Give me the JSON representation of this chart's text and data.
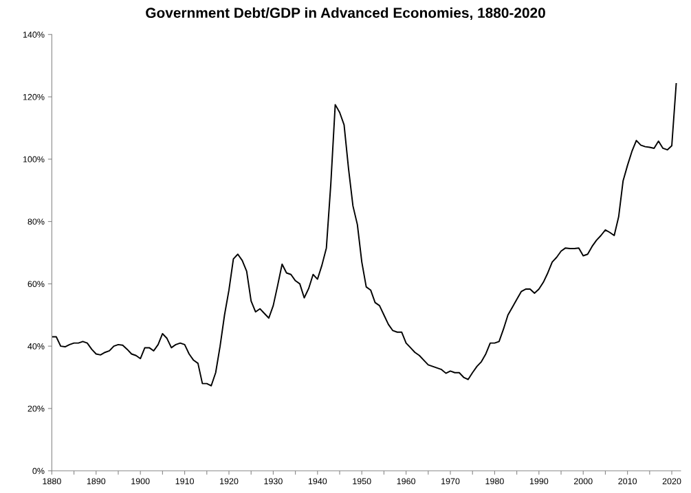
{
  "chart_data": {
    "type": "line",
    "title": "Government Debt/GDP in Advanced Economies, 1880-2020",
    "x": [
      1880,
      1881,
      1882,
      1883,
      1884,
      1885,
      1886,
      1887,
      1888,
      1889,
      1890,
      1891,
      1892,
      1893,
      1894,
      1895,
      1896,
      1897,
      1898,
      1899,
      1900,
      1901,
      1902,
      1903,
      1904,
      1905,
      1906,
      1907,
      1908,
      1909,
      1910,
      1911,
      1912,
      1913,
      1914,
      1915,
      1916,
      1917,
      1918,
      1919,
      1920,
      1921,
      1922,
      1923,
      1924,
      1925,
      1926,
      1927,
      1928,
      1929,
      1930,
      1931,
      1932,
      1933,
      1934,
      1935,
      1936,
      1937,
      1938,
      1939,
      1940,
      1941,
      1942,
      1943,
      1944,
      1945,
      1946,
      1947,
      1948,
      1949,
      1950,
      1951,
      1952,
      1953,
      1954,
      1955,
      1956,
      1957,
      1958,
      1959,
      1960,
      1961,
      1962,
      1963,
      1964,
      1965,
      1966,
      1967,
      1968,
      1969,
      1970,
      1971,
      1972,
      1973,
      1974,
      1975,
      1976,
      1977,
      1978,
      1979,
      1980,
      1981,
      1982,
      1983,
      1984,
      1985,
      1986,
      1987,
      1988,
      1989,
      1990,
      1991,
      1992,
      1993,
      1994,
      1995,
      1996,
      1997,
      1998,
      1999,
      2000,
      2001,
      2002,
      2003,
      2004,
      2005,
      2006,
      2007,
      2008,
      2009,
      2010,
      2011,
      2012,
      2013,
      2014,
      2015,
      2016,
      2017,
      2018,
      2019,
      2020,
      2021
    ],
    "series": [
      {
        "color": "#000000",
        "values": [
          43,
          43,
          40,
          39.8,
          40.5,
          41,
          41,
          41.5,
          41,
          39,
          37.5,
          37.2,
          38,
          38.5,
          40,
          40.5,
          40.3,
          39,
          37.5,
          37,
          36,
          39.5,
          39.5,
          38.5,
          40.5,
          44,
          42.5,
          39.5,
          40.5,
          41,
          40.5,
          37.5,
          35.5,
          34.5,
          28,
          28,
          27.3,
          31.5,
          40,
          50,
          58,
          68,
          69.5,
          67.5,
          64,
          54.5,
          51,
          52,
          50.5,
          49,
          53,
          59.5,
          66.3,
          63.5,
          63,
          61,
          60,
          55.5,
          58.5,
          63,
          61.5,
          66,
          71.5,
          92,
          117.5,
          115,
          111,
          97,
          85,
          79,
          67,
          59,
          58,
          54,
          53,
          50,
          47,
          45,
          44.5,
          44.5,
          41,
          39.5,
          38,
          37,
          35.5,
          34,
          33.5,
          33,
          32.5,
          31.3,
          32,
          31.5,
          31.5,
          30,
          29.3,
          31.5,
          33.5,
          35,
          37.5,
          41,
          41,
          41.5,
          45.5,
          50,
          52.5,
          55,
          57.5,
          58.3,
          58.3,
          57,
          58.3,
          60.5,
          63.5,
          67,
          68.5,
          70.5,
          71.5,
          71.3,
          71.3,
          71.5,
          69,
          69.5,
          72,
          74,
          75.5,
          77.3,
          76.5,
          75.5,
          81.5,
          93,
          98,
          102.5,
          106,
          104.5,
          104,
          103.8,
          103.5,
          105.8,
          103.5,
          103,
          104.3,
          124.2
        ]
      }
    ],
    "xlim": [
      1880,
      2022
    ],
    "xticks": [
      1880,
      {
        "value": 1885,
        "label": null
      },
      1890,
      {
        "value": 1895,
        "label": null
      },
      1900,
      {
        "value": 1905,
        "label": null
      },
      1910,
      {
        "value": 1915,
        "label": null
      },
      1920,
      {
        "value": 1925,
        "label": null
      },
      1930,
      {
        "value": 1935,
        "label": null
      },
      1940,
      {
        "value": 1945,
        "label": null
      },
      1950,
      {
        "value": 1955,
        "label": null
      },
      1960,
      {
        "value": 1965,
        "label": null
      },
      1970,
      {
        "value": 1975,
        "label": null
      },
      1980,
      {
        "value": 1985,
        "label": null
      },
      1990,
      {
        "value": 1995,
        "label": null
      },
      2000,
      {
        "value": 2005,
        "label": null
      },
      2010,
      {
        "value": 2015,
        "label": null
      },
      2020
    ],
    "ylim": [
      0,
      140
    ],
    "yticks": [
      {
        "value": 0,
        "label": "0%"
      },
      {
        "value": 20,
        "label": "20%"
      },
      {
        "value": 40,
        "label": "40%"
      },
      {
        "value": 60,
        "label": "60%"
      },
      {
        "value": 80,
        "label": "80%"
      },
      {
        "value": 100,
        "label": "100%"
      },
      {
        "value": 120,
        "label": "120%"
      },
      {
        "value": 140,
        "label": "140%"
      }
    ],
    "grid": false,
    "marker": "none",
    "line_style": "solid"
  }
}
